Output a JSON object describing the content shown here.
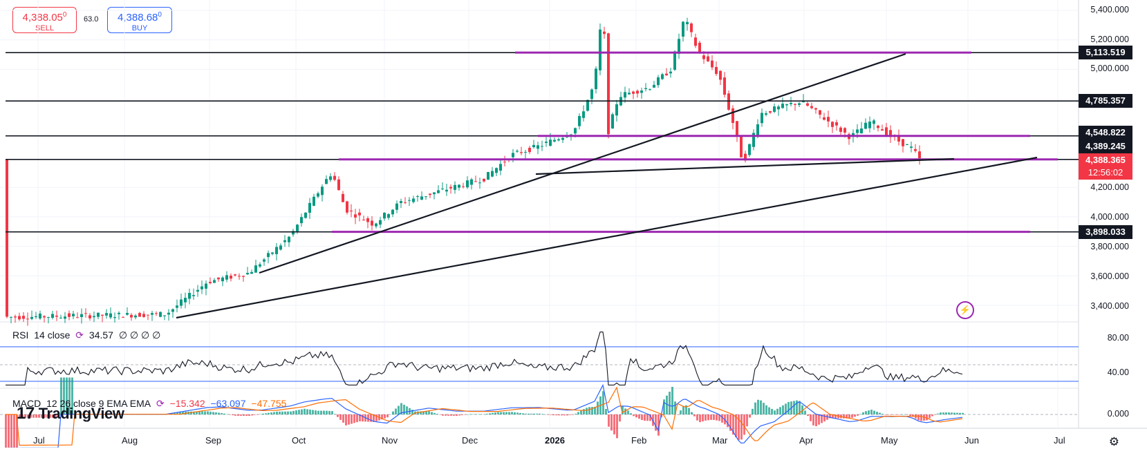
{
  "trade": {
    "sell_price": "4,388.05",
    "sell_sup": "0",
    "sell_label": "SELL",
    "spread": "63.0",
    "buy_price": "4,388.68",
    "buy_sup": "0",
    "buy_label": "BUY"
  },
  "price_axis": {
    "ticks": [
      "5,400.000",
      "5,200.000",
      "5,000.000",
      "4,200.000",
      "4,000.000",
      "3,800.000",
      "3,600.000",
      "3,400.000"
    ],
    "tick_values": [
      5400,
      5200,
      5000,
      4200,
      4000,
      3800,
      3600,
      3400
    ],
    "labels": [
      {
        "text": "5,113.519",
        "value": 5113.519
      },
      {
        "text": "4,785.357",
        "value": 4785.357
      },
      {
        "text": "4,548.822",
        "value": 4548.822
      },
      {
        "text": "4,389.245",
        "value": 4389.245
      }
    ],
    "current_price": "4,388.365",
    "countdown": "12:56:02",
    "support_label": "3,898.033",
    "support_value": 3898.033
  },
  "time_axis": [
    "Jul",
    "Aug",
    "Sep",
    "Oct",
    "Nov",
    "Dec",
    "2026",
    "Feb",
    "Mar",
    "Apr",
    "May",
    "Jun",
    "Jul"
  ],
  "rsi": {
    "name": "RSI",
    "params": "14 close",
    "value": "34.57",
    "extra": "∅ ∅ ∅ ∅",
    "ticks": [
      "80.00",
      "40.00"
    ]
  },
  "macd": {
    "name": "MACD",
    "params": "12 26 close 9 EMA EMA",
    "hist": "−15.342",
    "macd": "−63.097",
    "signal": "−47.755",
    "ticks": [
      "0.000"
    ]
  },
  "brand": {
    "logo_text": "TradingView",
    "logo_mark": "17"
  },
  "icons": {
    "settings": "gear-icon",
    "lightning": "lightning-icon"
  },
  "colors": {
    "up": "#089981",
    "down": "#f23645",
    "level": "#9c27b0",
    "trend": "#131722",
    "rsi": "#131722",
    "macd": "#2962ff",
    "signal": "#ff6d00"
  }
}
